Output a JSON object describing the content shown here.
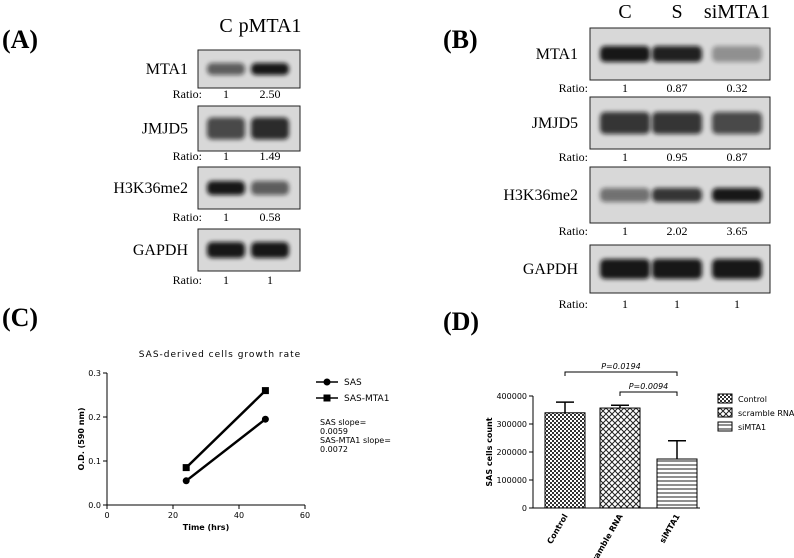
{
  "panel_labels": [
    "(A)",
    "(B)",
    "(C)",
    "(D)"
  ],
  "blot_a": {
    "lanes": [
      "C",
      "pMTA1"
    ],
    "ratio_label": "Ratio:",
    "rows": [
      {
        "protein": "MTA1",
        "ratios": [
          "1",
          "2.50"
        ]
      },
      {
        "protein": "JMJD5",
        "ratios": [
          "1",
          "1.49"
        ]
      },
      {
        "protein": "H3K36me2",
        "ratios": [
          "1",
          "0.58"
        ]
      },
      {
        "protein": "GAPDH",
        "ratios": [
          "1",
          "1"
        ]
      }
    ]
  },
  "blot_b": {
    "lanes": [
      "C",
      "S",
      "siMTA1"
    ],
    "ratio_label": "Ratio:",
    "rows": [
      {
        "protein": "MTA1",
        "ratios": [
          "1",
          "0.87",
          "0.32"
        ]
      },
      {
        "protein": "JMJD5",
        "ratios": [
          "1",
          "0.95",
          "0.87"
        ]
      },
      {
        "protein": "H3K36me2",
        "ratios": [
          "1",
          "2.02",
          "3.65"
        ]
      },
      {
        "protein": "GAPDH",
        "ratios": [
          "1",
          "1",
          "1"
        ]
      }
    ]
  },
  "chart_data": [
    {
      "type": "line",
      "title": "SAS-derived cells growth rate",
      "x_label": "Time (hrs)",
      "y_label": "O.D. (590 nm)",
      "x": [
        24,
        48
      ],
      "series": [
        {
          "name": "SAS",
          "color": "#000000",
          "marker": "circle",
          "values": [
            0.055,
            0.195
          ]
        },
        {
          "name": "SAS-MTA1",
          "color": "#000000",
          "marker": "square",
          "values": [
            0.085,
            0.26
          ]
        }
      ],
      "xlim": [
        0,
        60
      ],
      "xticks": [
        0,
        20,
        40,
        60
      ],
      "ylim": [
        0,
        0.3
      ],
      "yticks": [
        {
          "value": 0,
          "label": "0.0"
        },
        {
          "value": 0.1,
          "label": "0.1"
        },
        {
          "value": 0.2,
          "label": "0.2"
        },
        {
          "value": 0.3,
          "label": "0.3"
        }
      ],
      "annotations": [
        "SAS slope=",
        "0.0059",
        "SAS-MTA1 slope=",
        "0.0072"
      ]
    },
    {
      "type": "bar",
      "y_label": "SAS cells count",
      "categories": [
        "Control",
        "scramble RNA",
        "siMTA1"
      ],
      "values": [
        340000,
        357000,
        175000
      ],
      "errors": [
        38000,
        10000,
        65000
      ],
      "ylim": [
        0,
        400000
      ],
      "yticks": [
        0,
        100000,
        200000,
        300000,
        400000
      ],
      "annotations": [
        "P=0.0194",
        "P=0.0094"
      ]
    }
  ]
}
